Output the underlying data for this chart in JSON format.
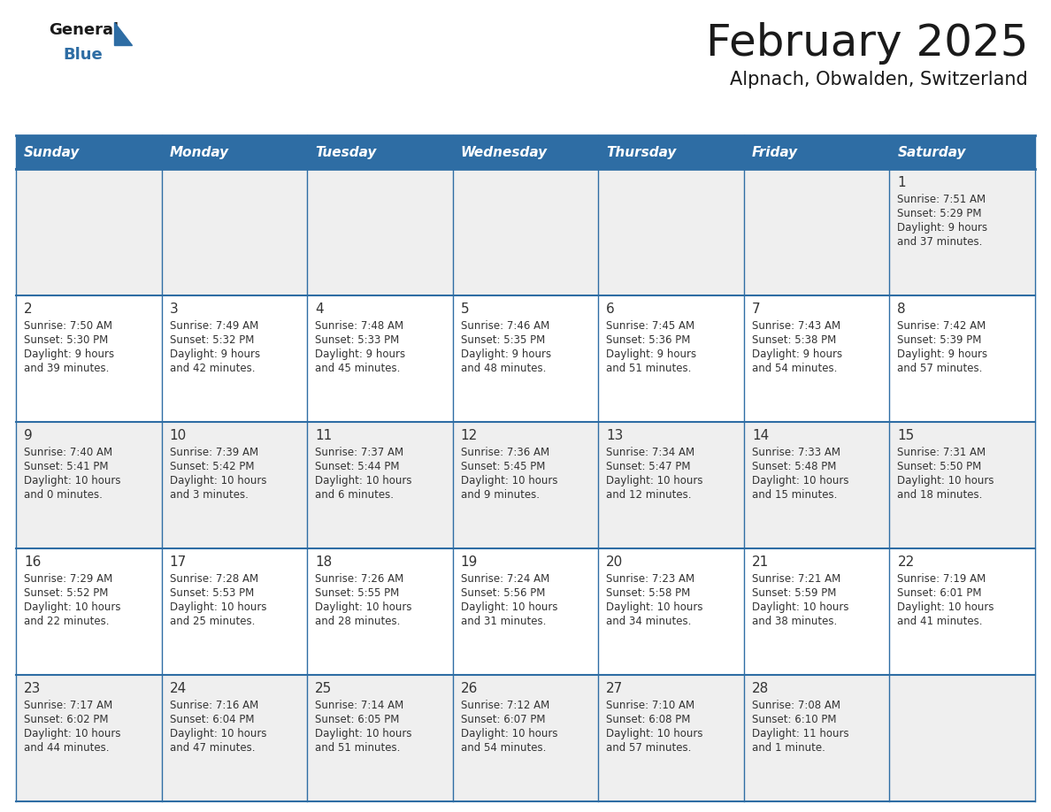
{
  "title": "February 2025",
  "subtitle": "Alpnach, Obwalden, Switzerland",
  "days_of_week": [
    "Sunday",
    "Monday",
    "Tuesday",
    "Wednesday",
    "Thursday",
    "Friday",
    "Saturday"
  ],
  "header_bg": "#2E6DA4",
  "header_text": "#FFFFFF",
  "cell_bg_light": "#EFEFEF",
  "cell_bg_white": "#FFFFFF",
  "cell_border": "#2E6DA4",
  "day_num_color": "#333333",
  "info_color": "#333333",
  "logo_general_color": "#1a1a1a",
  "logo_blue_color": "#2E6DA4",
  "title_color": "#1a1a1a",
  "subtitle_color": "#1a1a1a",
  "calendar": [
    [
      null,
      null,
      null,
      null,
      null,
      null,
      {
        "day": 1,
        "sunrise": "7:51 AM",
        "sunset": "5:29 PM",
        "daylight_line1": "Daylight: 9 hours",
        "daylight_line2": "and 37 minutes."
      }
    ],
    [
      {
        "day": 2,
        "sunrise": "7:50 AM",
        "sunset": "5:30 PM",
        "daylight_line1": "Daylight: 9 hours",
        "daylight_line2": "and 39 minutes."
      },
      {
        "day": 3,
        "sunrise": "7:49 AM",
        "sunset": "5:32 PM",
        "daylight_line1": "Daylight: 9 hours",
        "daylight_line2": "and 42 minutes."
      },
      {
        "day": 4,
        "sunrise": "7:48 AM",
        "sunset": "5:33 PM",
        "daylight_line1": "Daylight: 9 hours",
        "daylight_line2": "and 45 minutes."
      },
      {
        "day": 5,
        "sunrise": "7:46 AM",
        "sunset": "5:35 PM",
        "daylight_line1": "Daylight: 9 hours",
        "daylight_line2": "and 48 minutes."
      },
      {
        "day": 6,
        "sunrise": "7:45 AM",
        "sunset": "5:36 PM",
        "daylight_line1": "Daylight: 9 hours",
        "daylight_line2": "and 51 minutes."
      },
      {
        "day": 7,
        "sunrise": "7:43 AM",
        "sunset": "5:38 PM",
        "daylight_line1": "Daylight: 9 hours",
        "daylight_line2": "and 54 minutes."
      },
      {
        "day": 8,
        "sunrise": "7:42 AM",
        "sunset": "5:39 PM",
        "daylight_line1": "Daylight: 9 hours",
        "daylight_line2": "and 57 minutes."
      }
    ],
    [
      {
        "day": 9,
        "sunrise": "7:40 AM",
        "sunset": "5:41 PM",
        "daylight_line1": "Daylight: 10 hours",
        "daylight_line2": "and 0 minutes."
      },
      {
        "day": 10,
        "sunrise": "7:39 AM",
        "sunset": "5:42 PM",
        "daylight_line1": "Daylight: 10 hours",
        "daylight_line2": "and 3 minutes."
      },
      {
        "day": 11,
        "sunrise": "7:37 AM",
        "sunset": "5:44 PM",
        "daylight_line1": "Daylight: 10 hours",
        "daylight_line2": "and 6 minutes."
      },
      {
        "day": 12,
        "sunrise": "7:36 AM",
        "sunset": "5:45 PM",
        "daylight_line1": "Daylight: 10 hours",
        "daylight_line2": "and 9 minutes."
      },
      {
        "day": 13,
        "sunrise": "7:34 AM",
        "sunset": "5:47 PM",
        "daylight_line1": "Daylight: 10 hours",
        "daylight_line2": "and 12 minutes."
      },
      {
        "day": 14,
        "sunrise": "7:33 AM",
        "sunset": "5:48 PM",
        "daylight_line1": "Daylight: 10 hours",
        "daylight_line2": "and 15 minutes."
      },
      {
        "day": 15,
        "sunrise": "7:31 AM",
        "sunset": "5:50 PM",
        "daylight_line1": "Daylight: 10 hours",
        "daylight_line2": "and 18 minutes."
      }
    ],
    [
      {
        "day": 16,
        "sunrise": "7:29 AM",
        "sunset": "5:52 PM",
        "daylight_line1": "Daylight: 10 hours",
        "daylight_line2": "and 22 minutes."
      },
      {
        "day": 17,
        "sunrise": "7:28 AM",
        "sunset": "5:53 PM",
        "daylight_line1": "Daylight: 10 hours",
        "daylight_line2": "and 25 minutes."
      },
      {
        "day": 18,
        "sunrise": "7:26 AM",
        "sunset": "5:55 PM",
        "daylight_line1": "Daylight: 10 hours",
        "daylight_line2": "and 28 minutes."
      },
      {
        "day": 19,
        "sunrise": "7:24 AM",
        "sunset": "5:56 PM",
        "daylight_line1": "Daylight: 10 hours",
        "daylight_line2": "and 31 minutes."
      },
      {
        "day": 20,
        "sunrise": "7:23 AM",
        "sunset": "5:58 PM",
        "daylight_line1": "Daylight: 10 hours",
        "daylight_line2": "and 34 minutes."
      },
      {
        "day": 21,
        "sunrise": "7:21 AM",
        "sunset": "5:59 PM",
        "daylight_line1": "Daylight: 10 hours",
        "daylight_line2": "and 38 minutes."
      },
      {
        "day": 22,
        "sunrise": "7:19 AM",
        "sunset": "6:01 PM",
        "daylight_line1": "Daylight: 10 hours",
        "daylight_line2": "and 41 minutes."
      }
    ],
    [
      {
        "day": 23,
        "sunrise": "7:17 AM",
        "sunset": "6:02 PM",
        "daylight_line1": "Daylight: 10 hours",
        "daylight_line2": "and 44 minutes."
      },
      {
        "day": 24,
        "sunrise": "7:16 AM",
        "sunset": "6:04 PM",
        "daylight_line1": "Daylight: 10 hours",
        "daylight_line2": "and 47 minutes."
      },
      {
        "day": 25,
        "sunrise": "7:14 AM",
        "sunset": "6:05 PM",
        "daylight_line1": "Daylight: 10 hours",
        "daylight_line2": "and 51 minutes."
      },
      {
        "day": 26,
        "sunrise": "7:12 AM",
        "sunset": "6:07 PM",
        "daylight_line1": "Daylight: 10 hours",
        "daylight_line2": "and 54 minutes."
      },
      {
        "day": 27,
        "sunrise": "7:10 AM",
        "sunset": "6:08 PM",
        "daylight_line1": "Daylight: 10 hours",
        "daylight_line2": "and 57 minutes."
      },
      {
        "day": 28,
        "sunrise": "7:08 AM",
        "sunset": "6:10 PM",
        "daylight_line1": "Daylight: 11 hours",
        "daylight_line2": "and 1 minute."
      },
      null
    ]
  ]
}
